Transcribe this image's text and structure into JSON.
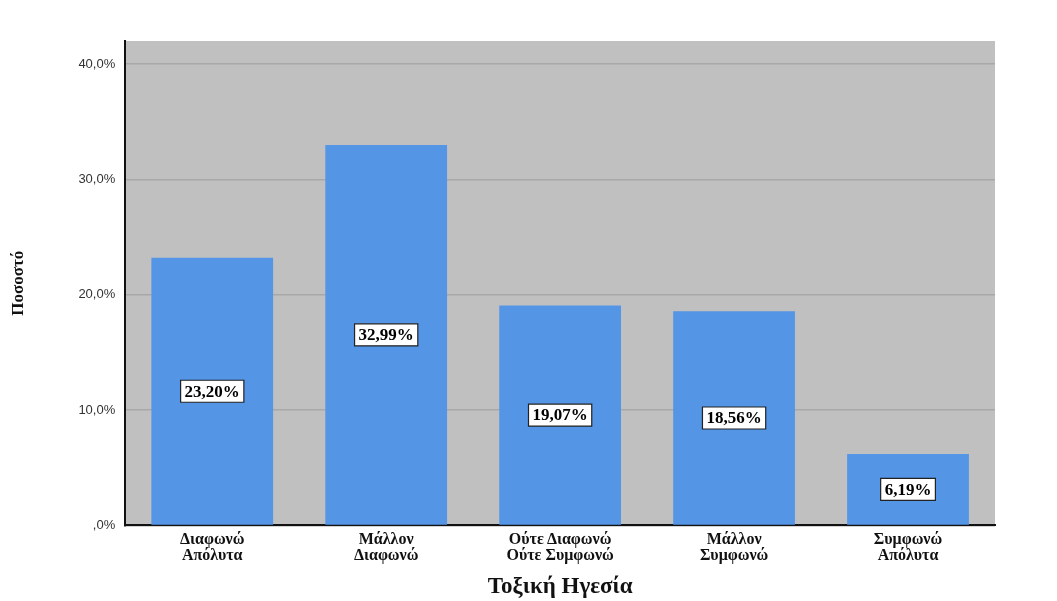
{
  "chart_data": {
    "type": "bar",
    "xlabel": "Τοξική Ηγεσία",
    "ylabel": "Ποσοστό",
    "categories": [
      "Διαφωνώ Απόλυτα",
      "Μάλλον Διαφωνώ",
      "Ούτε Διαφωνώ Ούτε Συμφωνώ",
      "Μάλλον Συμφωνώ",
      "Συμφωνώ Απόλυτα"
    ],
    "values": [
      23.2,
      32.99,
      19.07,
      18.56,
      6.19
    ],
    "color": "#5595e5",
    "value_labels": [
      "23,20%",
      "32,99%",
      "19,07%",
      "18,56%",
      "6,19%"
    ],
    "ylim": [
      0,
      42
    ],
    "yticks": [
      {
        "value": 0,
        "label": ",0%"
      },
      {
        "value": 10,
        "label": "10,0%"
      },
      {
        "value": 20,
        "label": "20,0%"
      },
      {
        "value": 30,
        "label": "30,0%"
      },
      {
        "value": 40,
        "label": "40,0%"
      }
    ],
    "grid": "y"
  }
}
